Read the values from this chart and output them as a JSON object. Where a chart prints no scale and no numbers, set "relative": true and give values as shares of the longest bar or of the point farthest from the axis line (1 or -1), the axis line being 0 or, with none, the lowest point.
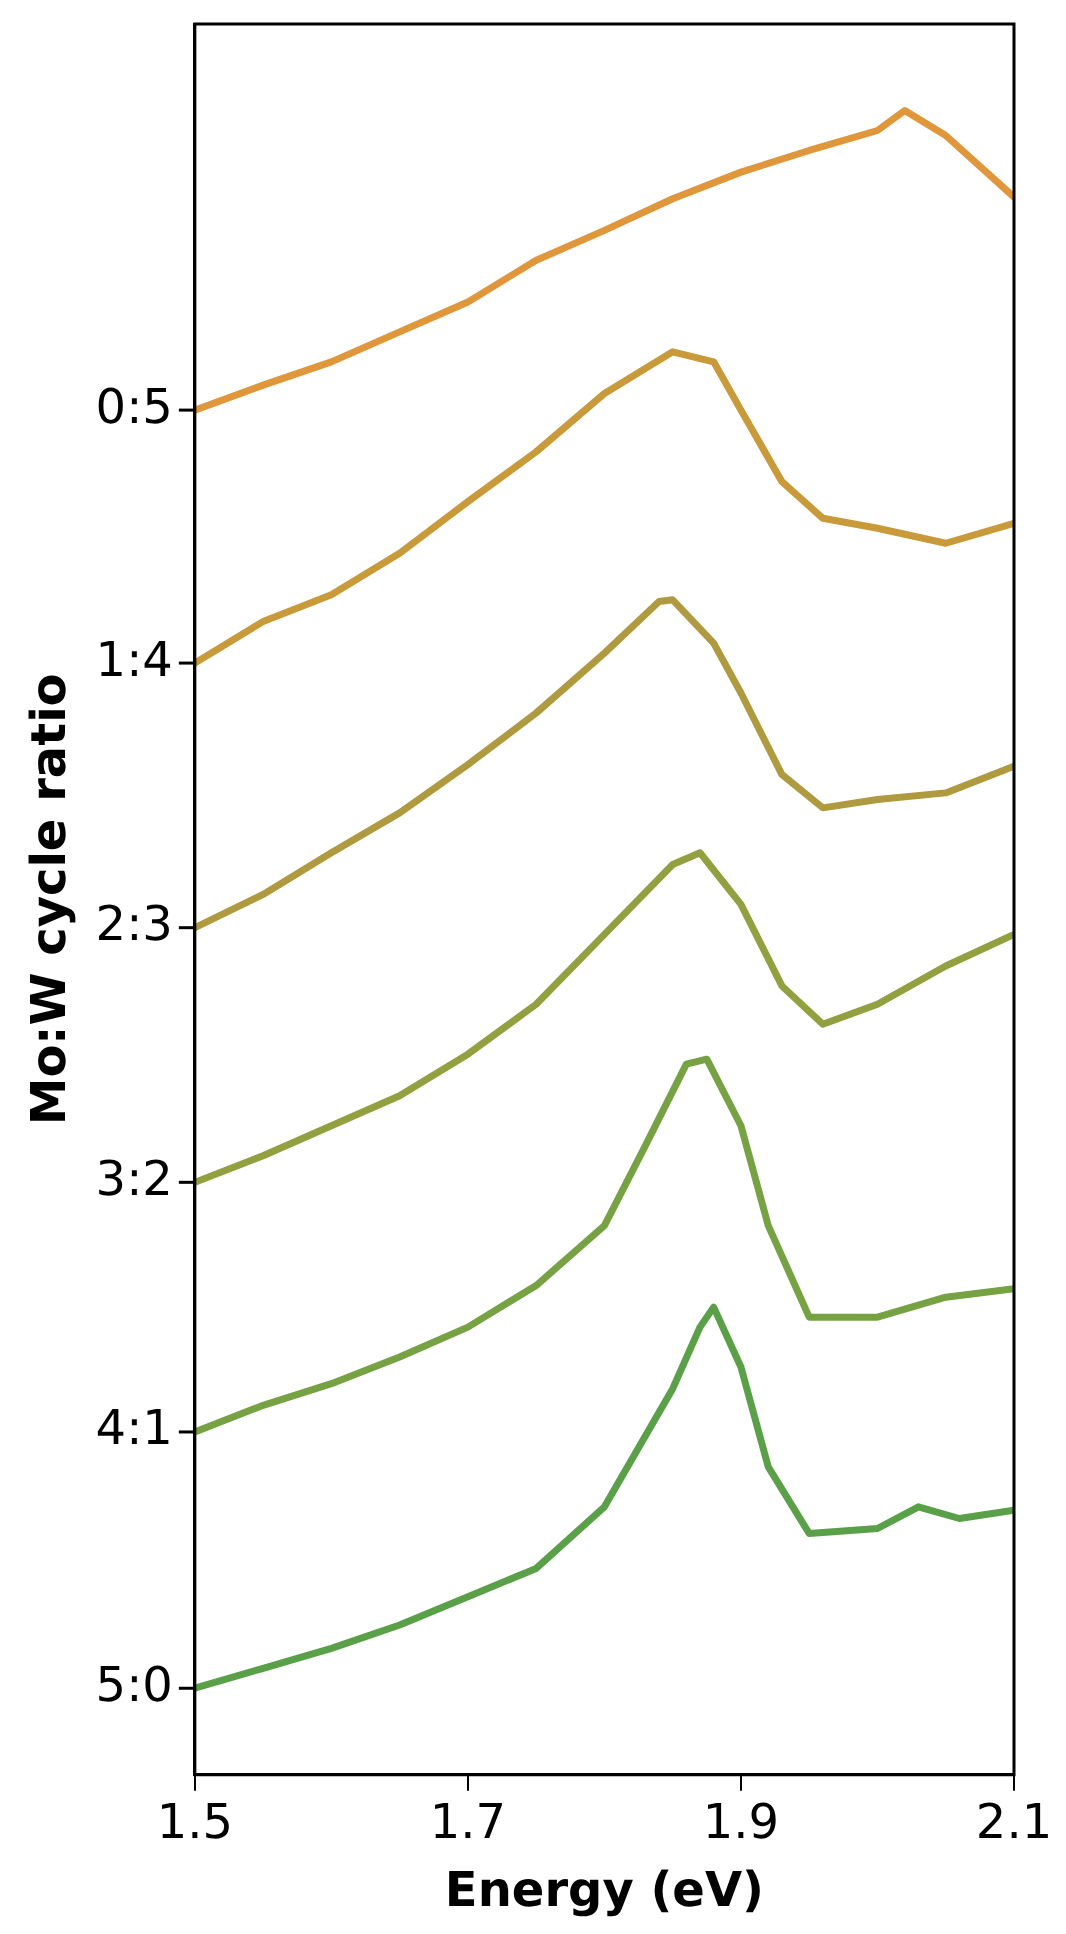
{
  "chart_data": {
    "type": "line",
    "xlabel": "Energy (eV)",
    "ylabel": "Mo:W cycle ratio",
    "xlim": [
      1.5,
      2.1
    ],
    "xticks": [
      1.5,
      1.7,
      1.9,
      2.1
    ],
    "relative": true,
    "grid": false,
    "legend": false,
    "marker": "none",
    "line_style": "solid",
    "series": [
      {
        "name": "5:0",
        "color": "#5aa048",
        "x": [
          1.5,
          1.55,
          1.6,
          1.65,
          1.7,
          1.75,
          1.8,
          1.85,
          1.87,
          1.88,
          1.9,
          1.92,
          1.95,
          2.0,
          2.03,
          2.06,
          2.1
        ],
        "values": [
          0.052,
          0.064,
          0.076,
          0.09,
          0.107,
          0.124,
          0.161,
          0.232,
          0.269,
          0.281,
          0.245,
          0.185,
          0.145,
          0.148,
          0.161,
          0.154,
          0.159
        ]
      },
      {
        "name": "4:1",
        "color": "#76a244",
        "x": [
          1.5,
          1.55,
          1.6,
          1.65,
          1.7,
          1.75,
          1.8,
          1.83,
          1.86,
          1.875,
          1.9,
          1.92,
          1.95,
          2.0,
          2.05,
          2.1
        ],
        "values": [
          0.206,
          0.222,
          0.235,
          0.251,
          0.269,
          0.294,
          0.33,
          0.378,
          0.427,
          0.43,
          0.39,
          0.33,
          0.275,
          0.275,
          0.287,
          0.292
        ]
      },
      {
        "name": "3:2",
        "color": "#92a040",
        "x": [
          1.5,
          1.55,
          1.6,
          1.65,
          1.7,
          1.75,
          1.8,
          1.85,
          1.87,
          1.9,
          1.93,
          1.96,
          2.0,
          2.05,
          2.1
        ],
        "values": [
          0.356,
          0.372,
          0.39,
          0.408,
          0.433,
          0.463,
          0.505,
          0.547,
          0.554,
          0.523,
          0.474,
          0.451,
          0.463,
          0.486,
          0.505
        ]
      },
      {
        "name": "2:3",
        "color": "#b09a40",
        "x": [
          1.5,
          1.55,
          1.6,
          1.65,
          1.7,
          1.75,
          1.8,
          1.84,
          1.85,
          1.88,
          1.9,
          1.93,
          1.96,
          2.0,
          2.05,
          2.1
        ],
        "values": [
          0.509,
          0.529,
          0.554,
          0.578,
          0.607,
          0.638,
          0.674,
          0.705,
          0.706,
          0.68,
          0.65,
          0.601,
          0.581,
          0.586,
          0.59,
          0.606
        ]
      },
      {
        "name": "1:4",
        "color": "#c99a3a",
        "x": [
          1.5,
          1.55,
          1.6,
          1.65,
          1.7,
          1.75,
          1.8,
          1.85,
          1.88,
          1.9,
          1.93,
          1.96,
          2.0,
          2.05,
          2.1
        ],
        "values": [
          0.668,
          0.693,
          0.709,
          0.734,
          0.765,
          0.795,
          0.83,
          0.855,
          0.849,
          0.82,
          0.777,
          0.755,
          0.749,
          0.74,
          0.752
        ]
      },
      {
        "name": "0:5",
        "color": "#e0963a",
        "x": [
          1.5,
          1.55,
          1.6,
          1.65,
          1.7,
          1.75,
          1.8,
          1.85,
          1.9,
          1.95,
          2.0,
          2.02,
          2.05,
          2.1
        ],
        "values": [
          0.82,
          0.835,
          0.849,
          0.867,
          0.885,
          0.91,
          0.928,
          0.947,
          0.963,
          0.976,
          0.988,
          1,
          0.985,
          0.948
        ]
      }
    ]
  }
}
